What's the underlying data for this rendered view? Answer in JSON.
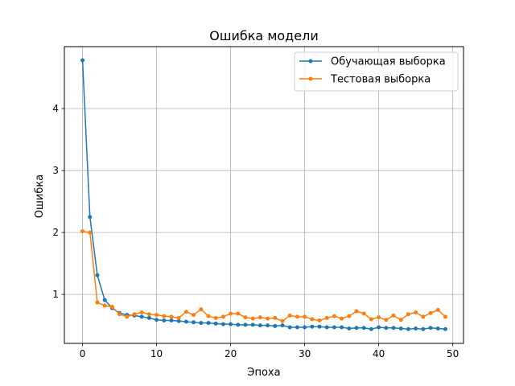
{
  "chart_data": {
    "type": "line",
    "title": "Ошибка модели",
    "xlabel": "Эпоха",
    "ylabel": "Ошибка",
    "xlim": [
      -2.45,
      51.45
    ],
    "ylim": [
      0.21,
      5.0
    ],
    "xticks": [
      0,
      10,
      20,
      30,
      40,
      50
    ],
    "yticks": [
      1,
      2,
      3,
      4
    ],
    "grid": true,
    "legend_position": "top-right",
    "x": [
      0,
      1,
      2,
      3,
      4,
      5,
      6,
      7,
      8,
      9,
      10,
      11,
      12,
      13,
      14,
      15,
      16,
      17,
      18,
      19,
      20,
      21,
      22,
      23,
      24,
      25,
      26,
      27,
      28,
      29,
      30,
      31,
      32,
      33,
      34,
      35,
      36,
      37,
      38,
      39,
      40,
      41,
      42,
      43,
      44,
      45,
      46,
      47,
      48,
      49
    ],
    "series": [
      {
        "name": "Обучающая выборка",
        "color": "#1f77b4",
        "values": [
          4.78,
          2.25,
          1.31,
          0.91,
          0.78,
          0.7,
          0.67,
          0.66,
          0.64,
          0.62,
          0.59,
          0.58,
          0.58,
          0.57,
          0.56,
          0.55,
          0.54,
          0.54,
          0.53,
          0.52,
          0.52,
          0.51,
          0.51,
          0.51,
          0.5,
          0.5,
          0.49,
          0.5,
          0.47,
          0.47,
          0.47,
          0.48,
          0.48,
          0.47,
          0.47,
          0.47,
          0.45,
          0.46,
          0.46,
          0.44,
          0.47,
          0.46,
          0.46,
          0.45,
          0.44,
          0.45,
          0.44,
          0.46,
          0.45,
          0.44
        ]
      },
      {
        "name": "Тестовая выборка",
        "color": "#ff7f0e",
        "values": [
          2.02,
          2.0,
          0.87,
          0.82,
          0.8,
          0.68,
          0.64,
          0.68,
          0.71,
          0.68,
          0.67,
          0.65,
          0.64,
          0.62,
          0.72,
          0.67,
          0.76,
          0.65,
          0.62,
          0.64,
          0.69,
          0.69,
          0.63,
          0.61,
          0.63,
          0.61,
          0.62,
          0.57,
          0.66,
          0.64,
          0.64,
          0.6,
          0.58,
          0.62,
          0.65,
          0.61,
          0.65,
          0.73,
          0.69,
          0.6,
          0.63,
          0.59,
          0.66,
          0.59,
          0.68,
          0.71,
          0.64,
          0.7,
          0.75,
          0.64
        ]
      }
    ]
  }
}
